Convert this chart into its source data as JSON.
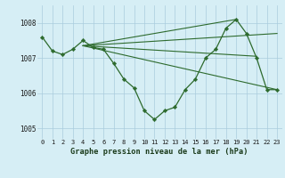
{
  "title": "Graphe pression niveau de la mer (hPa)",
  "bg_color": "#d6eef5",
  "grid_color": "#aaccdd",
  "line_color": "#2d6a2d",
  "marker_color": "#2d6a2d",
  "xlim": [
    -0.5,
    23.5
  ],
  "ylim": [
    1004.7,
    1008.5
  ],
  "yticks": [
    1005,
    1006,
    1007,
    1008
  ],
  "xticks": [
    0,
    1,
    2,
    3,
    4,
    5,
    6,
    7,
    8,
    9,
    10,
    11,
    12,
    13,
    14,
    15,
    16,
    17,
    18,
    19,
    20,
    21,
    22,
    23
  ],
  "main_x": [
    0,
    1,
    2,
    3,
    4,
    5,
    6,
    7,
    8,
    9,
    10,
    11,
    12,
    13,
    14,
    15,
    16,
    17,
    18,
    19,
    20,
    21,
    22,
    23
  ],
  "main_y": [
    1007.6,
    1007.2,
    1007.1,
    1007.25,
    1007.5,
    1007.3,
    1007.25,
    1006.85,
    1006.4,
    1006.15,
    1005.5,
    1005.25,
    1005.5,
    1005.6,
    1006.1,
    1006.4,
    1007.0,
    1007.25,
    1007.85,
    1008.1,
    1007.7,
    1007.0,
    1006.1,
    1006.1
  ],
  "fan_lines": [
    {
      "x": [
        4,
        23
      ],
      "y": [
        1007.35,
        1007.7
      ]
    },
    {
      "x": [
        4,
        23
      ],
      "y": [
        1007.35,
        1006.1
      ]
    },
    {
      "x": [
        4,
        19
      ],
      "y": [
        1007.35,
        1008.1
      ]
    },
    {
      "x": [
        4,
        21
      ],
      "y": [
        1007.35,
        1007.05
      ]
    }
  ]
}
